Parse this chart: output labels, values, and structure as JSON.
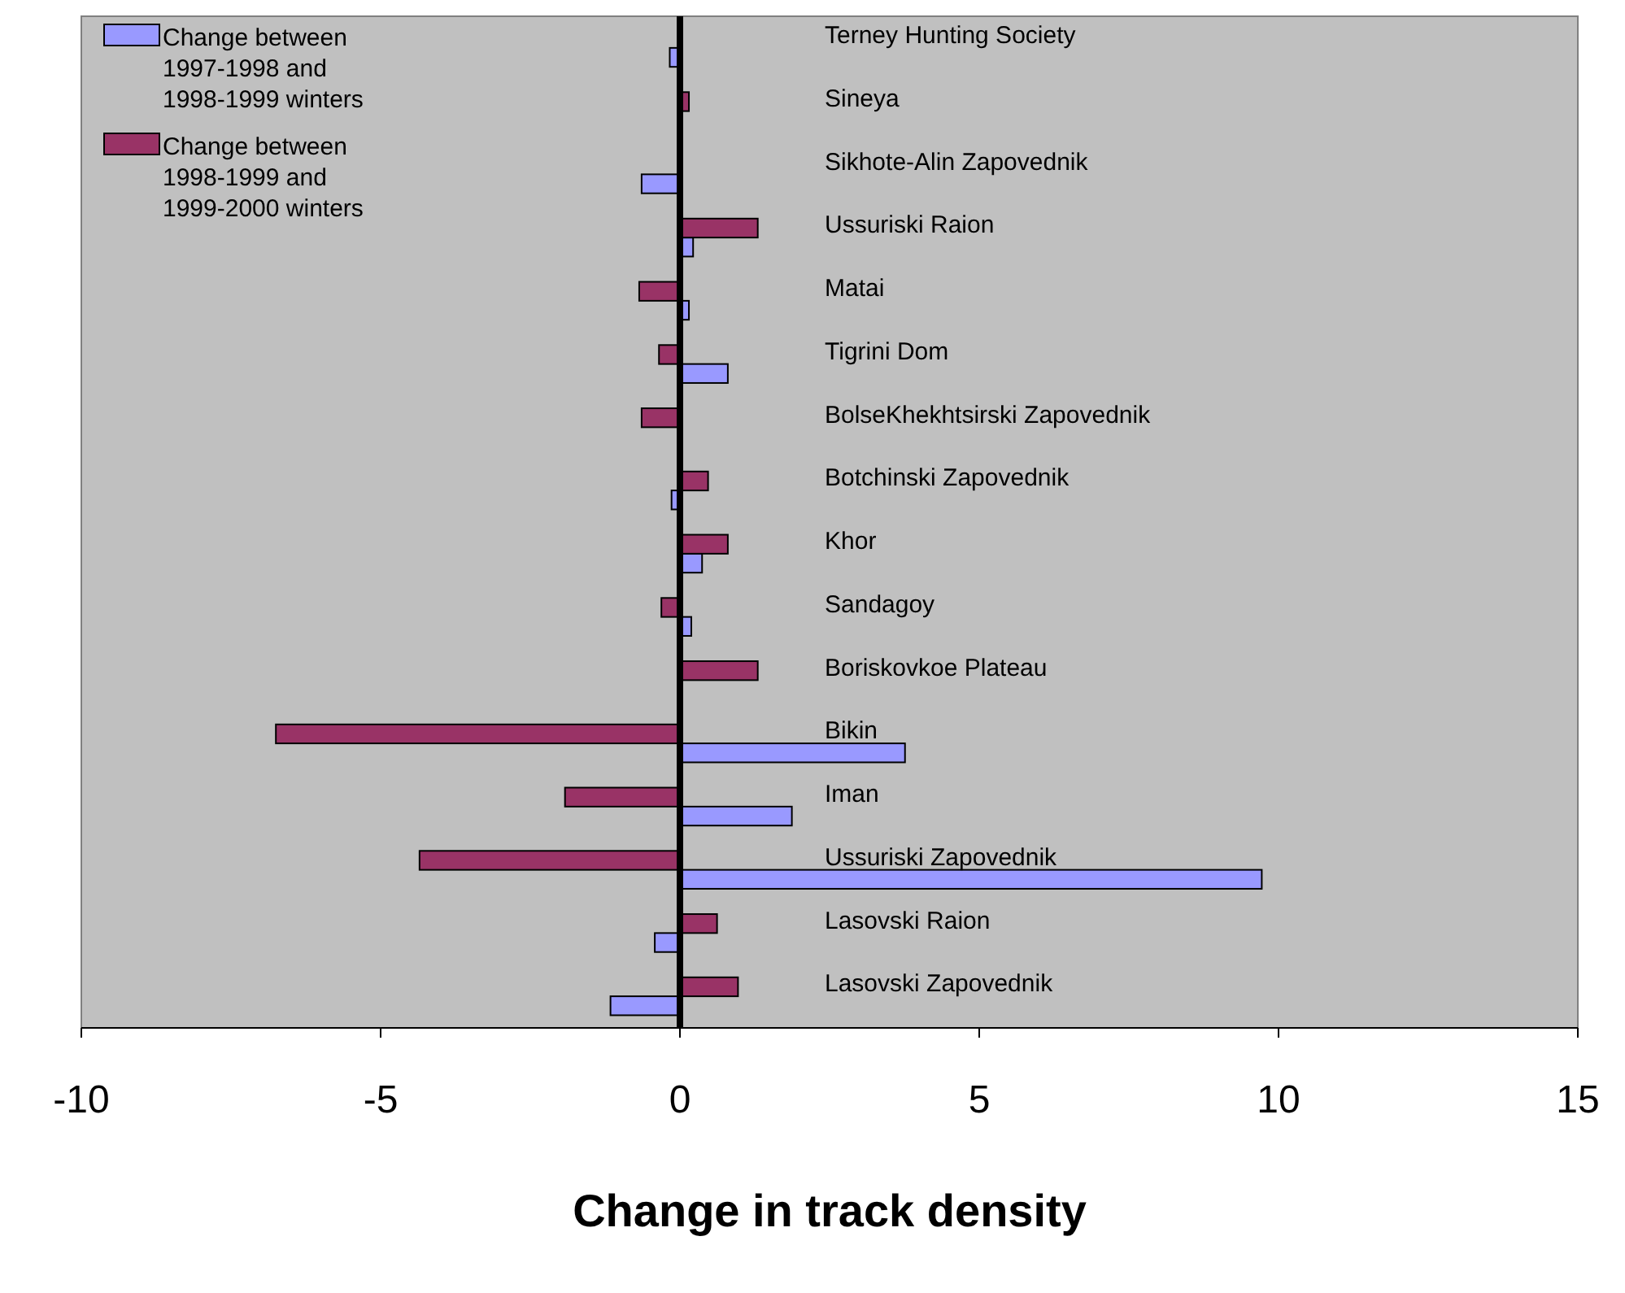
{
  "chart_data": {
    "type": "bar",
    "orientation": "horizontal",
    "xlabel": "Change in track density",
    "categories": [
      "Terney Hunting Society",
      "Sineya",
      "Sikhote-Alin Zapovednik",
      "Ussuriski Raion",
      "Matai",
      "Tigrini Dom",
      "BolseKhekhtsirski Zapovednik",
      "Botchinski Zapovednik",
      "Khor",
      "Sandagoy",
      "Boriskovkoe Plateau",
      "Bikin",
      "Iman",
      "Ussuriski Zapovednik",
      "Lasovski Raion",
      "Lasovski Zapovednik"
    ],
    "series": [
      {
        "name": "Change between 1997-1998 and 1998-1999 winters",
        "color": "#9999ff",
        "values": [
          -0.17,
          null,
          -0.64,
          0.22,
          0.15,
          0.8,
          null,
          -0.14,
          0.37,
          0.19,
          null,
          3.76,
          1.87,
          9.72,
          -0.42,
          -1.16
        ]
      },
      {
        "name": "Change between 1998-1999 and 1999-2000 winters",
        "color": "#993366",
        "values": [
          null,
          0.15,
          null,
          1.3,
          -0.68,
          -0.35,
          -0.64,
          0.47,
          0.8,
          -0.31,
          1.3,
          -6.75,
          -1.92,
          -4.35,
          0.62,
          0.97
        ]
      }
    ],
    "xlim": [
      -10,
      15
    ],
    "xticks": [
      -10,
      -5,
      0,
      5,
      10,
      15
    ],
    "legend": "top left"
  }
}
